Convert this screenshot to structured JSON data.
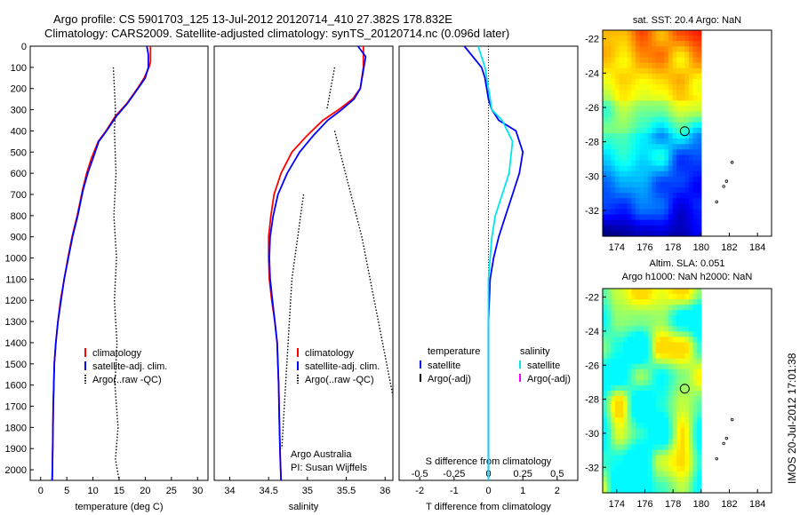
{
  "header": {
    "line1": "Argo profile: CS 5901703_125 13-Jul-2012 20120714_410 27.382S 178.832E",
    "line2": "Climatology: CARS2009. Satellite-adjusted climatology: synTS_20120714.nc (0.096d later)"
  },
  "side_stamp": "IMOS 20-Jul-2012 17:01:38",
  "colors": {
    "climatology": "#ff0000",
    "satellite": "#0000ff",
    "argo": "#000000",
    "salinity_satellite": "#00e5ee",
    "salinity_argo": "#ff00ff"
  },
  "chart_data": [
    {
      "type": "line",
      "id": "temperature",
      "xlabel": "temperature (deg C)",
      "xlim": [
        -2,
        32
      ],
      "ylim": [
        2050,
        0
      ],
      "xticks": [
        0,
        5,
        10,
        15,
        20,
        25,
        30
      ],
      "yticks": [
        0,
        100,
        200,
        300,
        400,
        500,
        600,
        700,
        800,
        900,
        1000,
        1100,
        1200,
        1300,
        1400,
        1500,
        1600,
        1700,
        1800,
        1900,
        2000
      ],
      "legend": [
        {
          "label": "climatology",
          "color": "#ff0000",
          "style": "solid"
        },
        {
          "label": "satellite-adj. clim.",
          "color": "#0000ff",
          "style": "solid"
        },
        {
          "label": "Argo(..raw -QC)",
          "color": "#000000",
          "style": "dotted"
        }
      ],
      "series": [
        {
          "name": "climatology",
          "color": "#ff0000",
          "style": "solid",
          "x": [
            21.0,
            21.0,
            20.7,
            19.8,
            18.5,
            16.5,
            14.3,
            12.5,
            11.0,
            9.7,
            8.8,
            8.0,
            7.0,
            6.0,
            5.2,
            4.5,
            3.8,
            3.3,
            2.9,
            2.6,
            2.4,
            2.3,
            2.2
          ],
          "y": [
            0,
            75,
            100,
            150,
            200,
            270,
            330,
            400,
            450,
            530,
            600,
            680,
            800,
            900,
            1000,
            1100,
            1200,
            1300,
            1400,
            1500,
            1700,
            1900,
            2050
          ]
        },
        {
          "name": "satellite-adj. clim.",
          "color": "#0000ff",
          "style": "solid",
          "x": [
            20.3,
            20.6,
            20.6,
            20.0,
            18.6,
            16.6,
            14.5,
            12.6,
            11.1,
            10.0,
            9.0,
            8.1,
            7.1,
            6.1,
            5.3,
            4.5,
            3.9,
            3.3,
            2.9,
            2.6,
            2.4,
            2.3,
            2.2
          ],
          "y": [
            0,
            40,
            100,
            150,
            200,
            270,
            330,
            400,
            450,
            530,
            600,
            680,
            800,
            900,
            1000,
            1100,
            1200,
            1300,
            1400,
            1500,
            1700,
            1900,
            2050
          ]
        },
        {
          "name": "Argo(..raw -QC)",
          "color": "#000000",
          "style": "dotted",
          "x": [
            13.9,
            14.3,
            14.1,
            14.4,
            14.0,
            14.5,
            14.1,
            14.6,
            14.2,
            14.8,
            14.3,
            15.0
          ],
          "y": [
            100,
            300,
            400,
            600,
            800,
            1000,
            1200,
            1400,
            1600,
            1800,
            1950,
            2050
          ]
        }
      ]
    },
    {
      "type": "line",
      "id": "salinity",
      "xlabel": "salinity",
      "xlim": [
        33.8,
        36.1
      ],
      "ylim": [
        2050,
        0
      ],
      "xticks": [
        34,
        34.5,
        35,
        35.5,
        36
      ],
      "legend": [
        {
          "label": "climatology",
          "color": "#ff0000",
          "style": "solid"
        },
        {
          "label": "satellite-adj. clim.",
          "color": "#0000ff",
          "style": "solid"
        },
        {
          "label": "Argo(..raw -QC)",
          "color": "#000000",
          "style": "dotted"
        }
      ],
      "annotations": [
        "Argo Australia",
        "PI: Susan Wijffels"
      ],
      "series": [
        {
          "name": "climatology",
          "color": "#ff0000",
          "style": "solid",
          "x": [
            35.72,
            35.72,
            35.68,
            35.58,
            35.4,
            35.2,
            35.0,
            34.8,
            34.66,
            34.57,
            34.53,
            34.5,
            34.5,
            34.51,
            34.54,
            34.58,
            34.61,
            34.63,
            34.64,
            34.65,
            34.66
          ],
          "y": [
            0,
            100,
            200,
            250,
            300,
            350,
            420,
            500,
            600,
            700,
            800,
            900,
            1000,
            1100,
            1200,
            1300,
            1400,
            1600,
            1800,
            1950,
            2050
          ]
        },
        {
          "name": "satellite-adj. clim.",
          "color": "#0000ff",
          "style": "solid",
          "x": [
            35.65,
            35.75,
            35.68,
            35.6,
            35.44,
            35.26,
            35.08,
            34.9,
            34.74,
            34.62,
            34.56,
            34.52,
            34.51,
            34.52,
            34.55,
            34.58,
            34.61,
            34.63,
            34.64,
            34.65,
            34.66
          ],
          "y": [
            0,
            50,
            200,
            250,
            300,
            350,
            420,
            500,
            600,
            700,
            800,
            900,
            1000,
            1100,
            1200,
            1300,
            1400,
            1600,
            1800,
            1950,
            2050
          ]
        },
        {
          "name": "Argo(..raw -QC)",
          "color": "#000000",
          "style": "dotted",
          "x": [
            35.35,
            35.3,
            35.25,
            34.95,
            34.8,
            34.67,
            35.35,
            35.7,
            36.1
          ],
          "y": [
            100,
            200,
            300,
            700,
            1100,
            1900,
            400,
            900,
            1650
          ]
        }
      ]
    },
    {
      "type": "line",
      "id": "difference",
      "xlabel": "T difference from climatology",
      "title_inside": "S difference from climatology",
      "xlim": [
        -2.6,
        2.6
      ],
      "ylim": [
        2050,
        0
      ],
      "xticks": [
        -2,
        -1,
        0,
        1,
        2
      ],
      "xticks_top": [
        "-0.5",
        "-0.25",
        "0",
        "0.25",
        "0.5"
      ],
      "legend": [
        {
          "group": "temperature",
          "label": "satellite",
          "color": "#0000ff"
        },
        {
          "group": "temperature",
          "label": "Argo(-adj)",
          "color": "#000000"
        },
        {
          "group": "salinity",
          "label": "satellite",
          "color": "#00e5ee"
        },
        {
          "group": "salinity",
          "label": "Argo(-adj)",
          "color": "#ff00ff"
        }
      ],
      "series": [
        {
          "name": "temperature satellite",
          "color": "#0000ff",
          "style": "solid",
          "x": [
            -0.7,
            -0.2,
            -0.1,
            0.0,
            0.1,
            0.3,
            0.8,
            1.0,
            0.9,
            0.7,
            0.5,
            0.3,
            0.15,
            0.05,
            0.0,
            0.0,
            0.0,
            0.0
          ],
          "y": [
            0,
            100,
            150,
            250,
            300,
            350,
            400,
            500,
            600,
            700,
            800,
            900,
            1000,
            1100,
            1300,
            1500,
            1800,
            2050
          ]
        },
        {
          "name": "salinity satellite",
          "color": "#00e5ee",
          "style": "solid",
          "x": [
            -0.3,
            -0.1,
            0.0,
            0.1,
            0.4,
            0.7,
            0.6,
            0.4,
            0.2,
            0.1,
            0.05,
            0.0,
            0.0,
            0.0,
            0.0
          ],
          "y": [
            0,
            100,
            200,
            300,
            350,
            450,
            600,
            700,
            800,
            900,
            1000,
            1100,
            1300,
            1600,
            2050
          ]
        }
      ]
    },
    {
      "type": "heatmap",
      "id": "sst_map",
      "title": "sat. SST: 20.4  Argo: NaN",
      "xlim": [
        173,
        185
      ],
      "ylim": [
        -33.5,
        -21.5
      ],
      "xticks": [
        174,
        176,
        178,
        180,
        182,
        184
      ],
      "yticks": [
        -22,
        -24,
        -26,
        -28,
        -30,
        -32
      ],
      "data_extent_x": [
        173,
        180
      ],
      "marker": {
        "lon": 178.832,
        "lat": -27.382
      },
      "track": [
        {
          "lon": 181.1,
          "lat": -31.5
        },
        {
          "lon": 181.6,
          "lat": -30.6
        },
        {
          "lon": 181.8,
          "lat": -30.3
        },
        {
          "lon": 182.2,
          "lat": -29.2
        }
      ]
    },
    {
      "type": "heatmap",
      "id": "sla_map",
      "title": "Altim. SLA: 0.051",
      "subtitle": "Argo h1000: NaN h2000: NaN",
      "xlim": [
        173,
        185
      ],
      "ylim": [
        -33.5,
        -21.5
      ],
      "xticks": [
        174,
        176,
        178,
        180,
        182,
        184
      ],
      "yticks": [
        -22,
        -24,
        -26,
        -28,
        -30,
        -32
      ],
      "data_extent_x": [
        173,
        180
      ],
      "marker": {
        "lon": 178.832,
        "lat": -27.382
      },
      "track": [
        {
          "lon": 181.1,
          "lat": -31.5
        },
        {
          "lon": 181.6,
          "lat": -30.6
        },
        {
          "lon": 181.8,
          "lat": -30.3
        },
        {
          "lon": 182.2,
          "lat": -29.2
        }
      ]
    }
  ]
}
